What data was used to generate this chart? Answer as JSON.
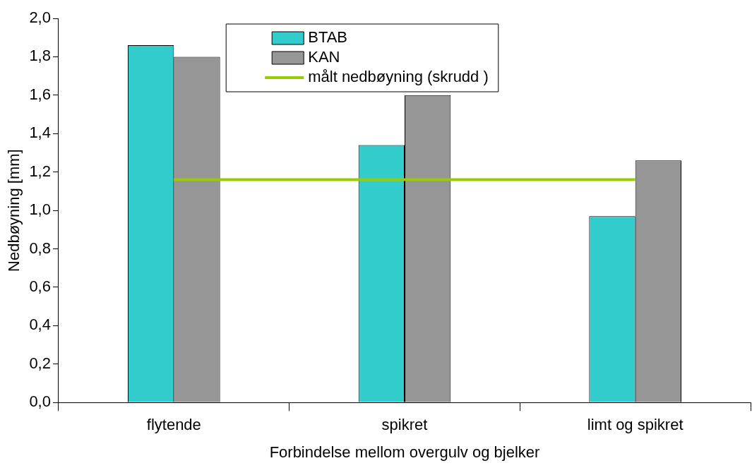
{
  "chart_data": {
    "type": "bar",
    "xlabel": "Forbindelse mellom overgulv og bjelker",
    "ylabel": "Nedbøyning [mm]",
    "categories": [
      "flytende",
      "spikret",
      "limt og spikret"
    ],
    "series": [
      {
        "name": "BTAB",
        "color": "#33cccc",
        "values": [
          1.86,
          1.34,
          0.97
        ]
      },
      {
        "name": "KAN",
        "color": "#969696",
        "values": [
          1.8,
          1.6,
          1.26
        ]
      },
      {
        "name": "målt nedbøyning (skrudd )",
        "type": "line",
        "color": "#99cc00",
        "values": [
          1.16,
          1.16,
          1.16
        ]
      }
    ],
    "ylim": [
      0,
      2
    ],
    "yticks": [
      {
        "value": 0,
        "label": "0,0"
      },
      {
        "value": 0.2,
        "label": "0,2"
      },
      {
        "value": 0.4,
        "label": "0,4"
      },
      {
        "value": 0.6,
        "label": "0,6"
      },
      {
        "value": 0.8,
        "label": "0,8"
      },
      {
        "value": 1,
        "label": "1,0"
      },
      {
        "value": 1.2,
        "label": "1,2"
      },
      {
        "value": 1.4,
        "label": "1,4"
      },
      {
        "value": 1.6,
        "label": "1,6"
      },
      {
        "value": 1.8,
        "label": "1,8"
      },
      {
        "value": 2,
        "label": "2,0"
      }
    ],
    "legend": "top",
    "grid": false
  }
}
